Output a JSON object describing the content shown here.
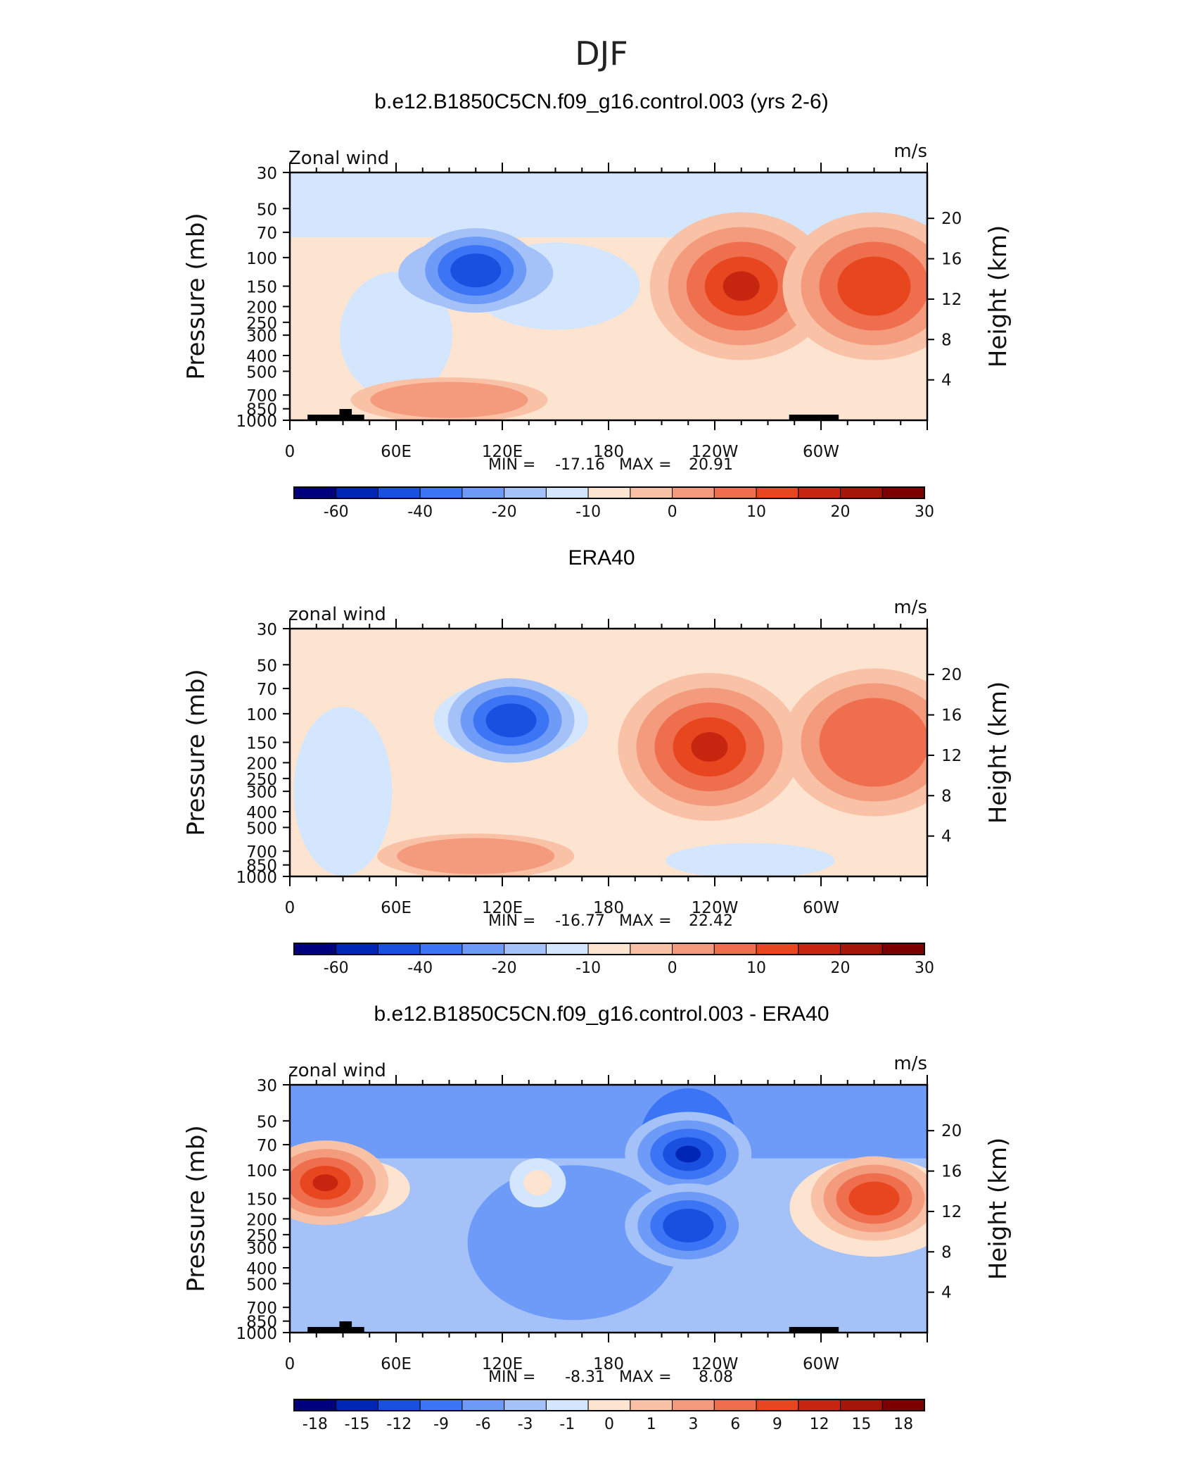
{
  "figure": {
    "season": "DJF"
  },
  "units": {
    "height_axis_label": "Height (km)",
    "lon_ticks": [
      "0",
      "60E",
      "120E",
      "180",
      "120W",
      "60W"
    ],
    "height_ticks": [
      "20",
      "16",
      "12",
      "8",
      "4"
    ]
  },
  "colors": {
    "contour_palette": [
      "#00007f",
      "#0026b5",
      "#1a50e0",
      "#3b75f5",
      "#6e9bf7",
      "#a5c2f8",
      "#d3e6fd",
      "#fde4d1",
      "#f9c1a6",
      "#f39b7c",
      "#ee6e4d",
      "#e8461e",
      "#c62610",
      "#a4160a",
      "#7c0000"
    ],
    "frame": "#000000",
    "topography": "#000000"
  },
  "chart_data": [
    {
      "type": "contour",
      "title": "b.e12.B1850C5CN.f09_g16.control.003 (yrs 2-6)",
      "variable_label": "Zonal wind",
      "units": "m/s",
      "ylabel": "Pressure (mb)",
      "y_ticks": [
        "30",
        "50",
        "70",
        "100",
        "150",
        "200",
        "250",
        "300",
        "400",
        "500",
        "700",
        "850",
        "1000"
      ],
      "x_ticks": [
        "0",
        "60E",
        "120E",
        "180",
        "120W",
        "60W"
      ],
      "stats": {
        "min_label": "MIN =",
        "min": "-17.16",
        "max_label": "MAX =",
        "max": "20.91"
      },
      "colorbar_labels": [
        "-60",
        "-40",
        "-20",
        "-10",
        "0",
        "10",
        "20",
        "30"
      ],
      "features": [
        {
          "kind": "jet",
          "lon": 255,
          "pressure": 150,
          "value": 20.91
        },
        {
          "kind": "jet",
          "lon": 330,
          "pressure": 150,
          "value": 18
        },
        {
          "kind": "easterly",
          "lon": 105,
          "pressure": 120,
          "value": -17.16
        },
        {
          "kind": "westerly_lowlevel",
          "lon": 90,
          "pressure": 750,
          "value": 8
        }
      ]
    },
    {
      "type": "contour",
      "title": "ERA40",
      "variable_label": "zonal wind",
      "units": "m/s",
      "ylabel": "Pressure (mb)",
      "y_ticks": [
        "30",
        "50",
        "70",
        "100",
        "150",
        "200",
        "250",
        "300",
        "400",
        "500",
        "700",
        "850",
        "1000"
      ],
      "x_ticks": [
        "0",
        "60E",
        "120E",
        "180",
        "120W",
        "60W"
      ],
      "stats": {
        "min_label": "MIN =",
        "min": "-16.77",
        "max_label": "MAX =",
        "max": "22.42"
      },
      "colorbar_labels": [
        "-60",
        "-40",
        "-20",
        "-10",
        "0",
        "10",
        "20",
        "30"
      ],
      "features": [
        {
          "kind": "jet",
          "lon": 237,
          "pressure": 160,
          "value": 22.42
        },
        {
          "kind": "jet",
          "lon": 330,
          "pressure": 150,
          "value": 15
        },
        {
          "kind": "easterly",
          "lon": 125,
          "pressure": 110,
          "value": -16.77
        },
        {
          "kind": "westerly_lowlevel",
          "lon": 105,
          "pressure": 750,
          "value": 6
        }
      ]
    },
    {
      "type": "contour",
      "title": "b.e12.B1850C5CN.f09_g16.control.003 - ERA40",
      "variable_label": "zonal wind",
      "units": "m/s",
      "ylabel": "Pressure (mb)",
      "y_ticks": [
        "30",
        "50",
        "70",
        "100",
        "150",
        "200",
        "250",
        "300",
        "400",
        "500",
        "700",
        "850",
        "1000"
      ],
      "x_ticks": [
        "0",
        "60E",
        "120E",
        "180",
        "120W",
        "60W"
      ],
      "stats": {
        "min_label": "MIN =",
        "min": "-8.31",
        "max_label": "MAX =",
        "max": "8.08"
      },
      "colorbar_labels": [
        "-18",
        "-15",
        "-12",
        "-9",
        "-6",
        "-3",
        "-1",
        "0",
        "1",
        "3",
        "6",
        "9",
        "12",
        "15",
        "18"
      ],
      "features": [
        {
          "kind": "positive",
          "lon": 20,
          "pressure": 120,
          "value": 8.08
        },
        {
          "kind": "positive",
          "lon": 330,
          "pressure": 150,
          "value": 7
        },
        {
          "kind": "negative",
          "lon": 225,
          "pressure": 80,
          "value": -8.31
        },
        {
          "kind": "negative",
          "lon": 225,
          "pressure": 220,
          "value": -7
        }
      ]
    }
  ]
}
